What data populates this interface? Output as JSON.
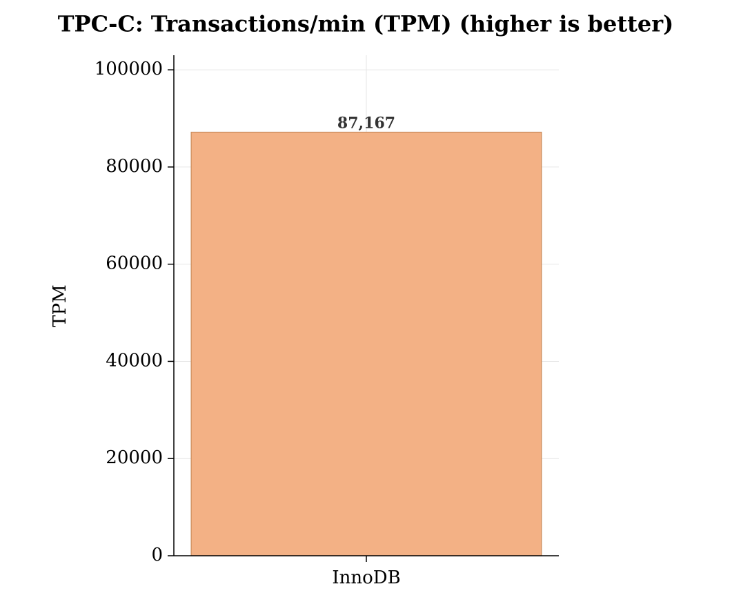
{
  "chart_data": {
    "type": "bar",
    "title": "TPC-C: Transactions/min (TPM)  (higher is better)",
    "ylabel": "TPM",
    "categories": [
      "InnoDB"
    ],
    "values": [
      87167
    ],
    "value_labels": [
      "87,167"
    ],
    "color": "#f3b185",
    "edgecolor": "#c98a5a",
    "ylim": [
      0,
      103000
    ],
    "yticks": [
      0,
      20000,
      40000,
      60000,
      80000,
      100000
    ],
    "grid": true
  }
}
